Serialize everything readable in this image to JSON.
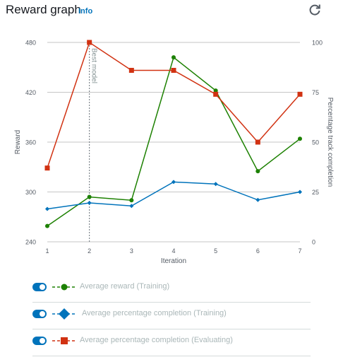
{
  "header": {
    "title": "Reward graph",
    "info_label": "Info"
  },
  "colors": {
    "reward_training": "#1d8102",
    "completion_training": "#0073bb",
    "completion_evaluating": "#d13212",
    "toggle_on": "#0073bb"
  },
  "icons": {
    "refresh": "refresh-icon"
  },
  "chart_data": {
    "type": "line",
    "x": [
      1,
      2,
      3,
      4,
      5,
      6,
      7
    ],
    "xlabel": "Iteration",
    "ylabel_left": "Reward",
    "ylabel_right": "Percentage track completion",
    "y_left_ticks": [
      "480",
      "420",
      "360",
      "300",
      "240"
    ],
    "y_right_ticks": [
      "100",
      "75",
      "50",
      "25",
      "0"
    ],
    "ylim_left": [
      240,
      480
    ],
    "ylim_right": [
      0,
      100
    ],
    "annotation": {
      "x": 2,
      "label": "Best model"
    },
    "grid": true,
    "series": [
      {
        "name": "Average reward (Training)",
        "axis": "left",
        "marker": "circle",
        "values": [
          259,
          294,
          290,
          462,
          422,
          325,
          364
        ]
      },
      {
        "name": "Average percentage completion (Training)",
        "axis": "right",
        "marker": "diamond",
        "values": [
          16.5,
          19.5,
          18,
          30,
          29,
          21,
          25
        ]
      },
      {
        "name": "Average percentage completion (Evaluating)",
        "axis": "right",
        "marker": "square",
        "values": [
          37,
          100,
          86,
          86,
          74,
          50,
          74
        ]
      }
    ]
  },
  "legend": {
    "items": [
      {
        "label": "Average reward (Training)"
      },
      {
        "label": "Average percentage completion (Training)"
      },
      {
        "label": "Average percentage completion (Evaluating)"
      }
    ]
  }
}
